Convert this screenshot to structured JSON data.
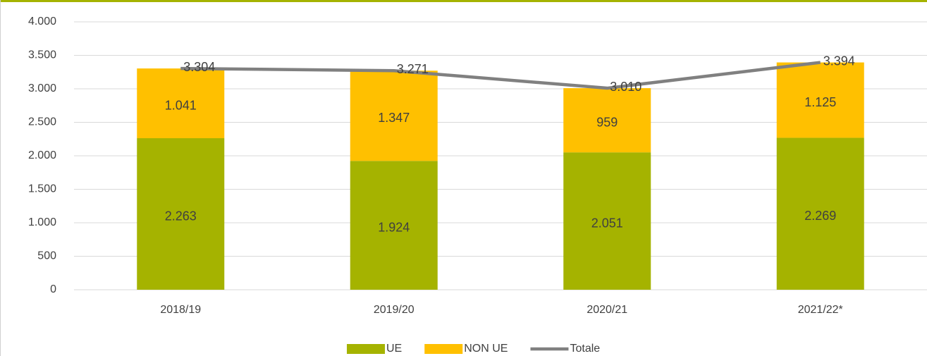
{
  "chart_data": {
    "type": "bar",
    "stacked": true,
    "categories": [
      "2018/19",
      "2019/20",
      "2020/21",
      "2021/22*"
    ],
    "series": [
      {
        "name": "UE",
        "type": "bar",
        "color": "#a5b300",
        "values": [
          2263,
          1924,
          2051,
          2269
        ],
        "value_labels": [
          "2.263",
          "1.924",
          "2.051",
          "2.269"
        ]
      },
      {
        "name": "NON UE",
        "type": "bar",
        "color": "#ffc000",
        "values": [
          1041,
          1347,
          959,
          1125
        ],
        "value_labels": [
          "1.041",
          "1.347",
          "959",
          "1.125"
        ]
      },
      {
        "name": "Totale",
        "type": "line",
        "color": "#808080",
        "values": [
          3304,
          3271,
          3010,
          3394
        ],
        "value_labels": [
          "3.304",
          "3.271",
          "3.010",
          "3.394"
        ]
      }
    ],
    "ylim": [
      0,
      4000
    ],
    "yticks": [
      0,
      500,
      {
        "value": 1000,
        "label": "1.000"
      },
      {
        "value": 1500,
        "label": "1.500"
      },
      {
        "value": 2000,
        "label": "2.000"
      },
      {
        "value": 2500,
        "label": "2.500"
      },
      {
        "value": 3000,
        "label": "3.000"
      },
      {
        "value": 3500,
        "label": "3.500"
      },
      {
        "value": 4000,
        "label": "4.000"
      }
    ],
    "grid": true,
    "legend": "bottom"
  }
}
